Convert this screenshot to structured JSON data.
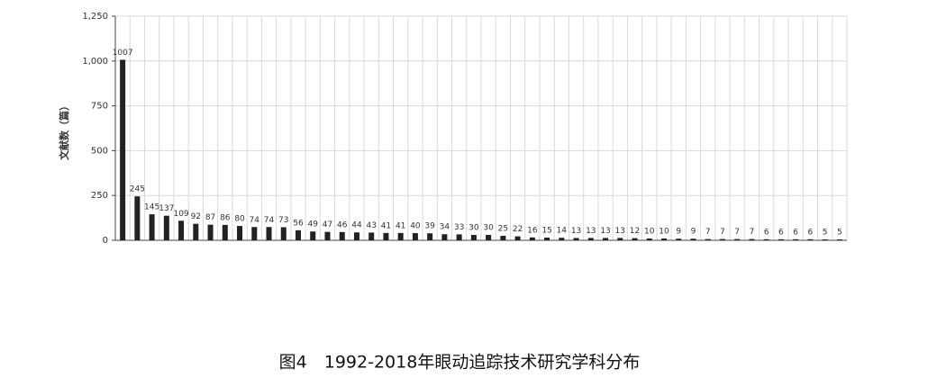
{
  "chart_data": {
    "type": "bar",
    "caption": "图4　1992-2018年眼动追踪技术研究学科分布",
    "y_label": "文献数（篇）",
    "categories": [
      null,
      null,
      null,
      null,
      null,
      null,
      null,
      null,
      null,
      null,
      null,
      null,
      null,
      null,
      null,
      null,
      null,
      null,
      null,
      null,
      null,
      null,
      null,
      null,
      null,
      null,
      null,
      null,
      null,
      null,
      null,
      null,
      null,
      null,
      null,
      null,
      null,
      null,
      null,
      null,
      null,
      null,
      null,
      null,
      null,
      null,
      null,
      null,
      null,
      null
    ],
    "values": [
      1007,
      245,
      145,
      137,
      109,
      92,
      87,
      86,
      80,
      74,
      74,
      73,
      56,
      49,
      47,
      46,
      44,
      43,
      41,
      41,
      40,
      39,
      34,
      33,
      30,
      30,
      25,
      22,
      16,
      15,
      14,
      13,
      13,
      13,
      13,
      12,
      10,
      10,
      9,
      9,
      7,
      7,
      7,
      7,
      6,
      6,
      6,
      6,
      5,
      5
    ],
    "color": "#222222",
    "ylim": [
      0,
      1250
    ],
    "yticks": [
      0,
      250,
      500,
      750,
      {
        "value": 1000,
        "label": "1,000"
      },
      {
        "value": 1250,
        "label": "1,250"
      }
    ],
    "grid": true
  }
}
